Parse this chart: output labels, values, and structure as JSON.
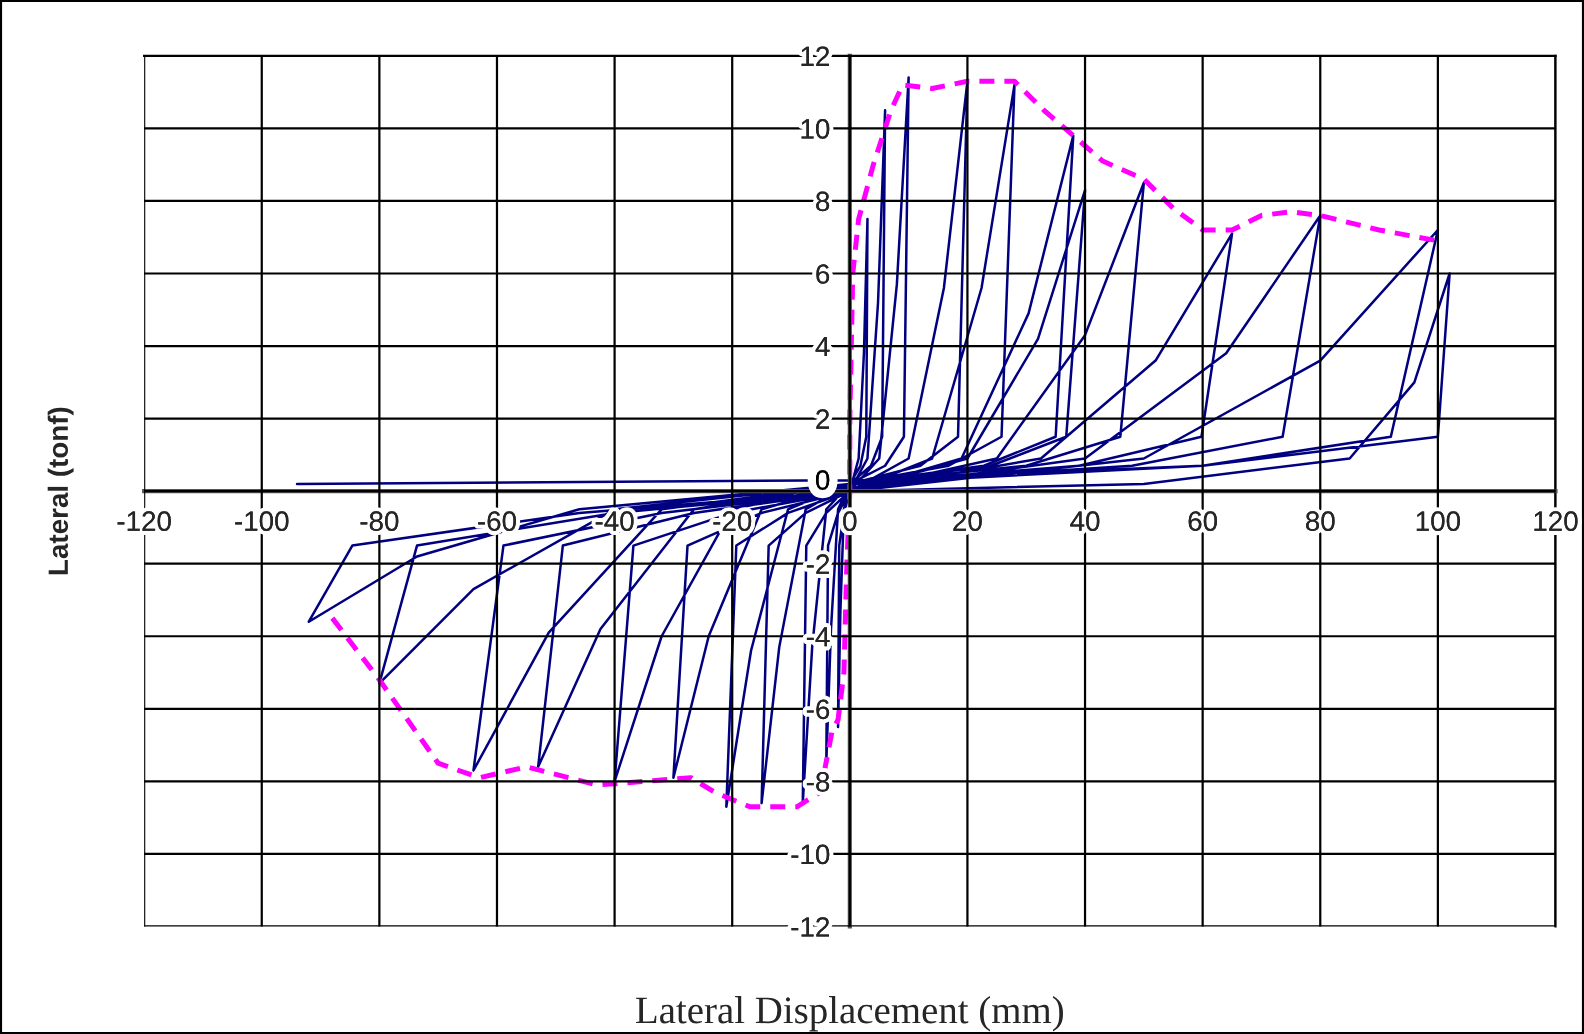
{
  "chart_data": {
    "type": "line",
    "xlabel": "Lateral Displacement (mm)",
    "ylabel": "Lateral (tonf)",
    "xlim": [
      -120,
      120
    ],
    "xticks": [
      -120,
      -100,
      -80,
      -60,
      -40,
      -20,
      0,
      20,
      40,
      60,
      80,
      100,
      120
    ],
    "ylim": [
      -12,
      12
    ],
    "yticks": [
      -12,
      -10,
      -8,
      -6,
      -4,
      -2,
      0,
      2,
      4,
      6,
      8,
      10,
      12
    ],
    "grid": true,
    "marker": "none",
    "series": [
      {
        "color": "#000080",
        "line_style": "solid",
        "x": [
          0,
          1.5,
          2.4,
          3,
          2.8,
          1.8,
          0,
          -1,
          -1.6,
          -2,
          -1.8,
          -1,
          0,
          3,
          4.8,
          6,
          5.5,
          3.6,
          0,
          -2,
          -3.2,
          -4,
          -3.7,
          -2,
          0,
          5,
          8,
          10,
          9.2,
          6,
          0,
          -4,
          -6.4,
          -8,
          -7.4,
          -4,
          0,
          10,
          16,
          20,
          18.4,
          12,
          0,
          -7.5,
          -12,
          -15,
          -13.8,
          -7.5,
          0,
          14,
          22.4,
          28,
          25.8,
          16.8,
          0,
          -10.5,
          -16.8,
          -21,
          -19.3,
          -10.5,
          0,
          19,
          30.4,
          38,
          35,
          22.8,
          0,
          -15,
          -24,
          -30,
          -27.6,
          -15,
          0,
          20,
          32,
          40,
          36.8,
          24,
          0,
          -20,
          -32,
          -40,
          -36.8,
          -20,
          0,
          25,
          40,
          50,
          46,
          30,
          0,
          -26.5,
          -42.4,
          -53,
          -48.8,
          -26.5,
          0,
          32.5,
          52,
          65,
          59.8,
          39,
          0,
          -32,
          -51.2,
          -64,
          -58.9,
          -32,
          0,
          40,
          64,
          80,
          73.6,
          48,
          0,
          -40,
          -64,
          -80,
          -73.6,
          -40,
          0,
          50,
          80,
          100,
          92,
          60,
          0,
          -46,
          -73.6,
          -92,
          -84.6,
          -46,
          0,
          50,
          85,
          96,
          102,
          100,
          60,
          0,
          -94
        ],
        "values": [
          0,
          0.9,
          3.8,
          7.5,
          1.5,
          0.7,
          0.2,
          -0.5,
          -3.3,
          -6.5,
          -1.5,
          -0.6,
          0,
          0.9,
          5.2,
          10.5,
          1.5,
          0.7,
          0.2,
          -0.5,
          -3.8,
          -7.5,
          -1.5,
          -0.6,
          0,
          0.9,
          5.7,
          11.4,
          1.5,
          0.7,
          0.2,
          -0.5,
          -4.3,
          -8.6,
          -1.5,
          -0.6,
          0,
          0.9,
          5.6,
          11.3,
          1.5,
          0.7,
          0.2,
          -0.5,
          -4.3,
          -8.6,
          -1.5,
          -0.6,
          0,
          0.9,
          5.6,
          11.2,
          1.5,
          0.7,
          0.2,
          -0.5,
          -4.4,
          -8.7,
          -1.5,
          -0.6,
          0,
          0.9,
          4.9,
          9.8,
          1.5,
          0.7,
          0.2,
          -0.5,
          -4,
          -7.9,
          -1.5,
          -0.6,
          0,
          0.9,
          4.2,
          8.3,
          1.5,
          0.7,
          0.2,
          -0.5,
          -4,
          -8,
          -1.5,
          -0.6,
          0,
          0.9,
          4.3,
          8.5,
          1.5,
          0.7,
          0.2,
          -0.5,
          -3.8,
          -7.6,
          -1.5,
          -0.6,
          0,
          0.9,
          3.6,
          7.1,
          1.5,
          0.7,
          0.2,
          -0.5,
          -3.9,
          -7.7,
          -1.5,
          -0.6,
          0,
          0.9,
          3.8,
          7.6,
          1.5,
          0.7,
          0.2,
          -0.5,
          -2.7,
          -5.3,
          -1.5,
          -0.6,
          0,
          0.9,
          3.6,
          7.2,
          1.5,
          0.7,
          0.2,
          -0.5,
          -1.8,
          -3.6,
          -1.5,
          -0.6,
          0,
          0.2,
          0.9,
          3,
          6,
          1.5,
          0.7,
          0.3,
          0.2
        ]
      },
      {
        "color": "#ff00ff",
        "line_style": "dashed",
        "x": [
          -88,
          -80,
          -70,
          -63,
          -55,
          -43,
          -35,
          -27,
          -23,
          -17,
          -9,
          -5,
          -3,
          -2,
          -1,
          -0.5,
          0,
          0,
          0.5,
          1.5,
          4,
          7,
          9,
          14,
          20,
          28,
          33,
          43,
          50,
          55,
          60,
          65,
          70,
          75,
          80,
          90,
          100
        ],
        "values": [
          -3.5,
          -5.2,
          -7.5,
          -7.9,
          -7.6,
          -8.1,
          -8,
          -7.9,
          -8.3,
          -8.7,
          -8.7,
          -8.3,
          -6.6,
          -6.3,
          -5,
          -2,
          0,
          2,
          6,
          7.5,
          9,
          10.5,
          11.2,
          11.1,
          11.3,
          11.3,
          10.5,
          9.1,
          8.6,
          7.8,
          7.2,
          7.2,
          7.6,
          7.7,
          7.6,
          7.2,
          6.9
        ]
      }
    ]
  }
}
